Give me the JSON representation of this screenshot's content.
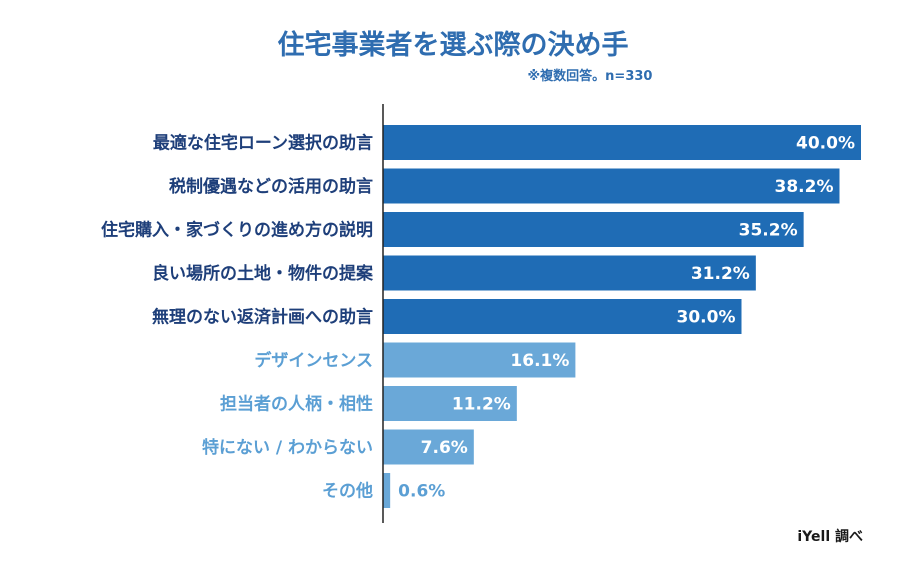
{
  "chart_data": {
    "type": "bar",
    "orientation": "horizontal",
    "title": "住宅事業者を選ぶ際の決め手",
    "subtitle": "※複数回答。n=330",
    "source": "iYell 調べ",
    "unit": "%",
    "xlim": [
      0,
      40
    ],
    "categories": [
      "最適な住宅ローン選択の助言",
      "税制優遇などの活用の助言",
      "住宅購入・家づくりの進め方の説明",
      "良い場所の土地・物件の提案",
      "無理のない返済計画への助言",
      "デザインセンス",
      "担当者の人柄・相性",
      "特にない / わからない",
      "その他"
    ],
    "values": [
      40.0,
      38.2,
      35.2,
      31.2,
      30.0,
      16.1,
      11.2,
      7.6,
      0.6
    ],
    "value_labels": [
      "40.0%",
      "38.2%",
      "35.2%",
      "31.2%",
      "30.0%",
      "16.1%",
      "11.2%",
      "7.6%",
      "0.6%"
    ],
    "highlight_count": 5,
    "colors": {
      "highlight_bar": "#1f6cb5",
      "highlight_label": "#1e3f7a",
      "normal_bar": "#6aa8d8",
      "normal_label": "#5b9fd4",
      "axis": "#222222",
      "title": "#2f6db0"
    }
  }
}
